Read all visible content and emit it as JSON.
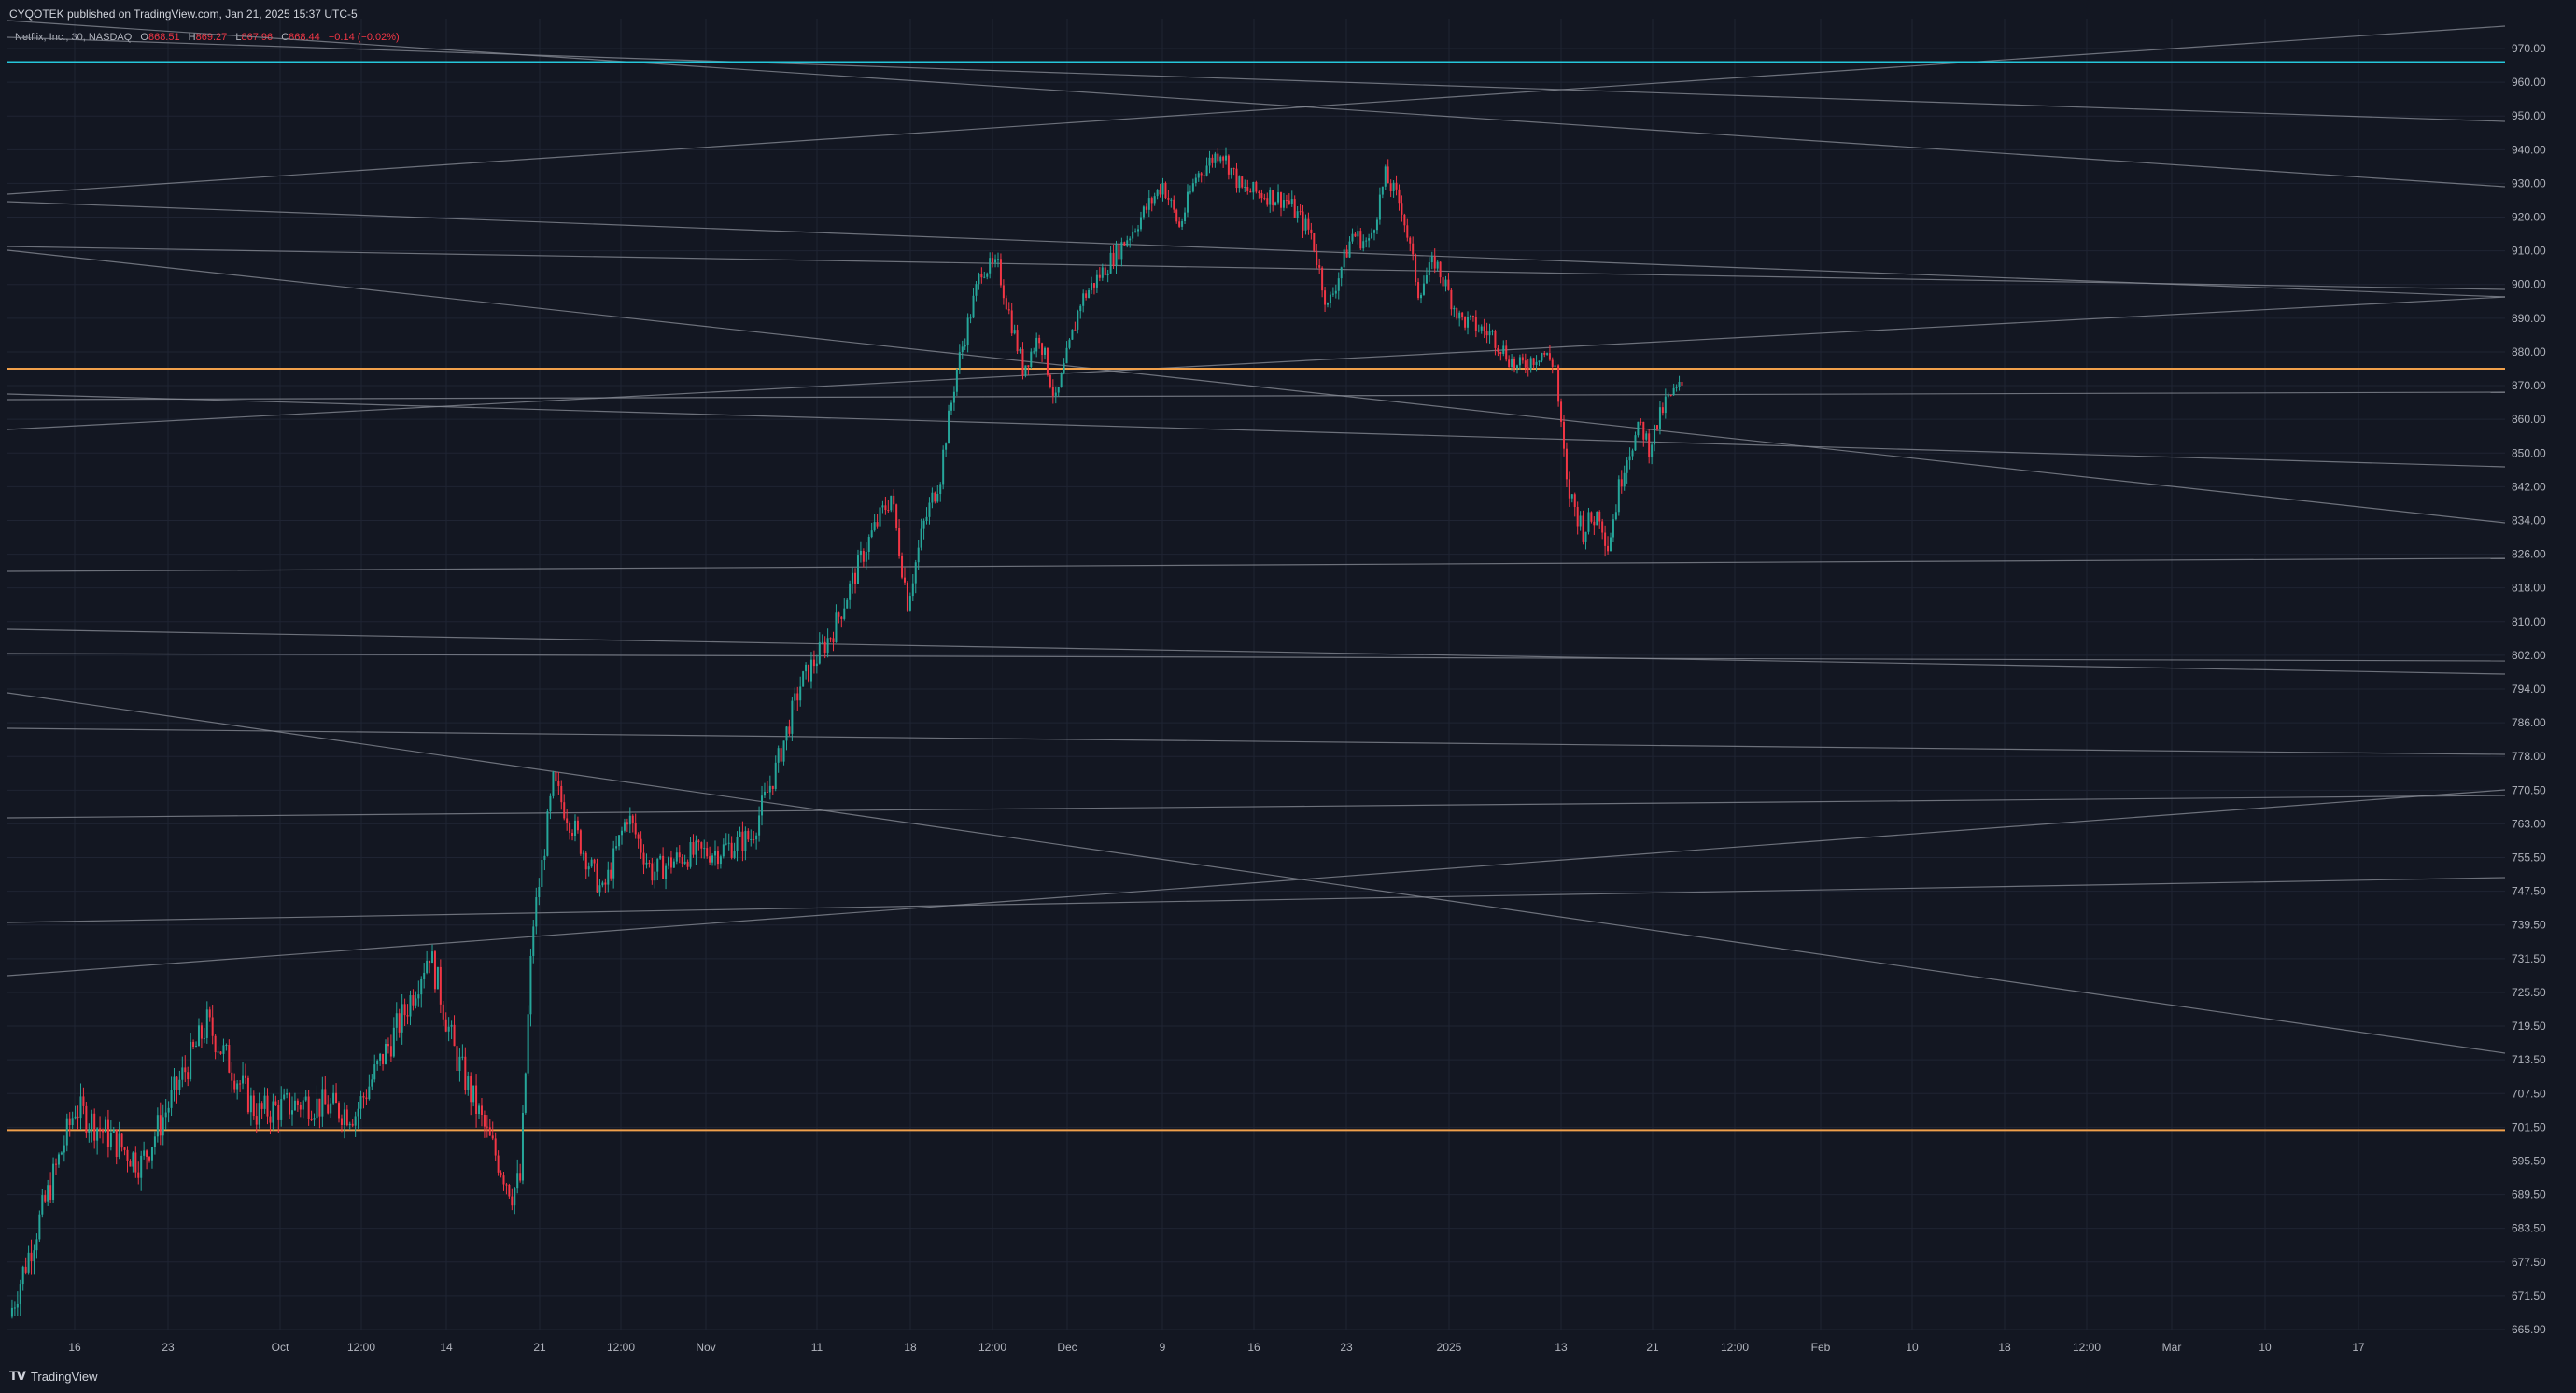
{
  "header": {
    "published": "CYQOTEK published on TradingView.com, Jan 21, 2025 15:37 UTC-5"
  },
  "legend": {
    "symbol": "Netflix, Inc., 30, NASDAQ",
    "open_label": "O",
    "open": "868.51",
    "high_label": "H",
    "high": "869.27",
    "low_label": "L",
    "low": "867.96",
    "close_label": "C",
    "close": "868.44",
    "change": "−0.14 (−0.02%)"
  },
  "branding": {
    "name": "TradingView",
    "icon": "tradingview-logo-icon"
  },
  "colors": {
    "background": "#131722",
    "grid": "#1f2433",
    "up": "#26a69a",
    "down": "#f23645",
    "cyan_line": "#26c6da",
    "orange_line": "#f0a04b",
    "trendline": "#8b8f99",
    "axis_text": "#b2b5be"
  },
  "chart_data": {
    "type": "candlestick",
    "symbol": "NFLX",
    "timeframe": "30",
    "y_ticks": [
      970.0,
      960.0,
      950.0,
      940.0,
      930.0,
      920.0,
      910.0,
      900.0,
      890.0,
      880.0,
      870.0,
      860.0,
      850.0,
      842.0,
      834.0,
      826.0,
      818.0,
      810.0,
      802.0,
      794.0,
      786.0,
      778.0,
      770.5,
      763.0,
      755.5,
      747.5,
      739.5,
      731.5,
      725.5,
      719.5,
      713.5,
      707.5,
      701.5,
      695.5,
      689.5,
      683.5,
      677.5,
      671.5,
      665.9
    ],
    "y_tick_labels": [
      "970.00",
      "960.00",
      "950.00",
      "940.00",
      "930.00",
      "920.00",
      "910.00",
      "900.00",
      "890.00",
      "880.00",
      "870.00",
      "860.00",
      "850.00",
      "842.00",
      "834.00",
      "826.00",
      "818.00",
      "810.00",
      "802.00",
      "794.00",
      "786.00",
      "778.00",
      "770.50",
      "763.00",
      "755.50",
      "747.50",
      "739.50",
      "731.50",
      "725.50",
      "719.50",
      "713.50",
      "707.50",
      "701.50",
      "695.50",
      "689.50",
      "683.50",
      "677.50",
      "671.50",
      "665.90"
    ],
    "x_ticks": [
      "16",
      "23",
      "Oct",
      "12:00",
      "14",
      "21",
      "12:00",
      "Nov",
      "11",
      "18",
      "12:00",
      "Dec",
      "9",
      "16",
      "23",
      "2025",
      "13",
      "21",
      "12:00",
      "Feb",
      "10",
      "18",
      "12:00",
      "Mar",
      "10",
      "17"
    ],
    "horizontal_levels": [
      {
        "price": 966.0,
        "color": "cyan"
      },
      {
        "price": 875.0,
        "color": "orange"
      },
      {
        "price": 701.0,
        "color": "orange"
      }
    ],
    "price_path": [
      [
        0,
        668
      ],
      [
        40,
        705
      ],
      [
        80,
        695
      ],
      [
        120,
        720
      ],
      [
        150,
        704
      ],
      [
        180,
        706
      ],
      [
        210,
        704
      ],
      [
        240,
        722
      ],
      [
        255,
        733
      ],
      [
        270,
        715
      ],
      [
        290,
        700
      ],
      [
        305,
        690
      ],
      [
        310,
        692
      ],
      [
        318,
        740
      ],
      [
        330,
        772
      ],
      [
        345,
        760
      ],
      [
        360,
        747
      ],
      [
        375,
        765
      ],
      [
        390,
        752
      ],
      [
        410,
        756
      ],
      [
        430,
        757
      ],
      [
        450,
        760
      ],
      [
        465,
        775
      ],
      [
        480,
        795
      ],
      [
        500,
        808
      ],
      [
        520,
        828
      ],
      [
        535,
        840
      ],
      [
        545,
        815
      ],
      [
        555,
        833
      ],
      [
        565,
        845
      ],
      [
        575,
        875
      ],
      [
        590,
        905
      ],
      [
        600,
        905
      ],
      [
        615,
        875
      ],
      [
        625,
        885
      ],
      [
        635,
        865
      ],
      [
        650,
        895
      ],
      [
        665,
        905
      ],
      [
        680,
        915
      ],
      [
        700,
        930
      ],
      [
        710,
        917
      ],
      [
        720,
        932
      ],
      [
        735,
        940
      ],
      [
        748,
        928
      ],
      [
        760,
        927
      ],
      [
        775,
        925
      ],
      [
        790,
        915
      ],
      [
        800,
        893
      ],
      [
        815,
        915
      ],
      [
        825,
        912
      ],
      [
        835,
        932
      ],
      [
        845,
        923
      ],
      [
        855,
        898
      ],
      [
        865,
        907
      ],
      [
        880,
        890
      ],
      [
        900,
        885
      ],
      [
        915,
        875
      ],
      [
        930,
        880
      ],
      [
        938,
        876
      ],
      [
        940,
        865
      ],
      [
        945,
        842
      ],
      [
        955,
        832
      ],
      [
        965,
        836
      ],
      [
        970,
        828
      ],
      [
        980,
        848
      ],
      [
        990,
        858
      ],
      [
        995,
        852
      ],
      [
        1005,
        865
      ],
      [
        1015,
        870
      ]
    ]
  }
}
